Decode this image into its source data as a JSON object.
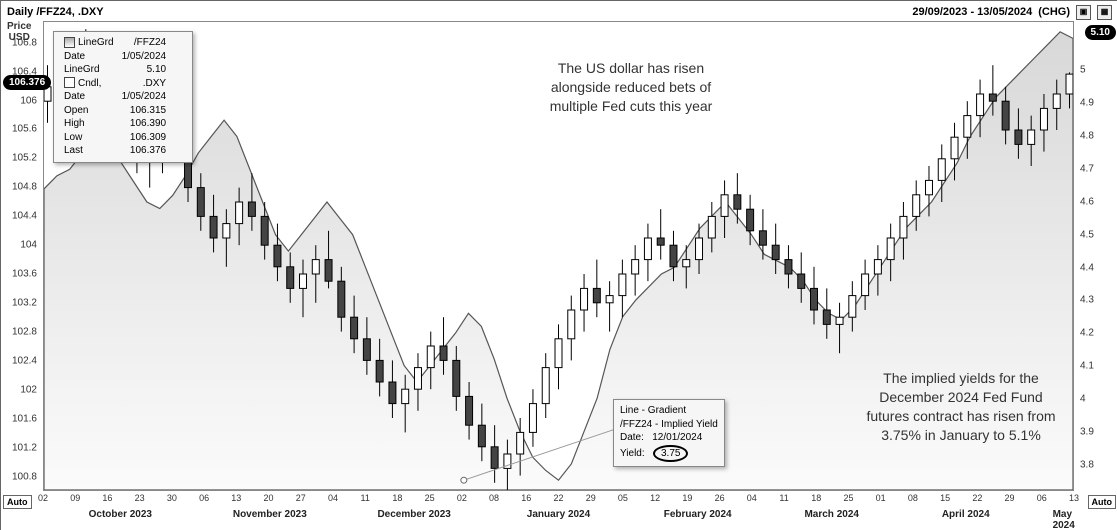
{
  "header": {
    "title_left": "Daily /FFZ24, .DXY",
    "date_range": "29/09/2023 - 13/05/2024",
    "chg_label": "(CHG)"
  },
  "left_axis": {
    "title1": "Price",
    "title2": "USD",
    "ticks": [
      100.8,
      101.2,
      101.6,
      102,
      102.4,
      102.8,
      103.2,
      103.6,
      104,
      104.4,
      104.8,
      105.2,
      105.6,
      106,
      106.4,
      106.8
    ],
    "ymin": 100.6,
    "ymax": 107.1,
    "badge_value": "106.376",
    "auto_label": "Auto"
  },
  "right_axis": {
    "ticks": [
      3.8,
      3.9,
      4,
      4.1,
      4.2,
      4.3,
      4.4,
      4.5,
      4.6,
      4.7,
      4.8,
      4.9,
      5
    ],
    "ymin": 3.72,
    "ymax": 5.15,
    "badge_value": "5.10",
    "auto_label": "Auto"
  },
  "xaxis": {
    "day_ticks": [
      "02",
      "09",
      "16",
      "23",
      "30",
      "06",
      "13",
      "20",
      "27",
      "04",
      "11",
      "18",
      "25",
      "02",
      "08",
      "16",
      "22",
      "29",
      "05",
      "12",
      "19",
      "26",
      "04",
      "11",
      "18",
      "25",
      "01",
      "08",
      "15",
      "22",
      "29",
      "06",
      "13"
    ],
    "months": [
      {
        "label": "October 2023",
        "pos": 0.075
      },
      {
        "label": "November 2023",
        "pos": 0.22
      },
      {
        "label": "December 2023",
        "pos": 0.36
      },
      {
        "label": "January 2024",
        "pos": 0.5
      },
      {
        "label": "February 2024",
        "pos": 0.635
      },
      {
        "label": "March 2024",
        "pos": 0.765
      },
      {
        "label": "April 2024",
        "pos": 0.895
      },
      {
        "label": "May 2024",
        "pos": 0.99
      }
    ]
  },
  "tooltip_tl": {
    "rows": [
      {
        "sym": "line",
        "l": "LineGrd",
        "r": "/FFZ24"
      },
      {
        "l": "Date",
        "r": "1/05/2024"
      },
      {
        "l": "LineGrd",
        "r": "5.10"
      },
      {
        "sym": "candle",
        "l": "Cndl,",
        "r": ".DXY"
      },
      {
        "l": "Date",
        "r": "1/05/2024"
      },
      {
        "l": "Open",
        "r": "106.315"
      },
      {
        "l": "High",
        "r": "106.390"
      },
      {
        "l": "Low",
        "r": "106.309"
      },
      {
        "l": "Last",
        "r": "106.376"
      }
    ]
  },
  "tooltip_mid": {
    "l1": "Line - Gradient",
    "l2": "/FFZ24 - Implied Yield",
    "l3a": "Date:",
    "l3b": "12/01/2024",
    "l4a": "Yield:",
    "l4b": "3.75"
  },
  "annotations": {
    "a1": "The US dollar has risen\nalongside reduced bets of\nmultiple Fed cuts this year",
    "a2": "The implied yields for the\nDecember 2024 Fed Fund\nfutures contract has risen from\n3.75% in January to 5.1%"
  },
  "series": {
    "area_y2": [
      4.64,
      4.68,
      4.7,
      4.75,
      4.8,
      4.78,
      4.72,
      4.66,
      4.6,
      4.58,
      4.62,
      4.68,
      4.75,
      4.8,
      4.85,
      4.8,
      4.7,
      4.6,
      4.5,
      4.45,
      4.5,
      4.55,
      4.6,
      4.55,
      4.5,
      4.4,
      4.3,
      4.2,
      4.1,
      4.05,
      4.1,
      4.15,
      4.2,
      4.26,
      4.22,
      4.12,
      4.0,
      3.9,
      3.82,
      3.78,
      3.75,
      3.8,
      3.9,
      4.0,
      4.15,
      4.25,
      4.3,
      4.34,
      4.38,
      4.4,
      4.46,
      4.52,
      4.56,
      4.6,
      4.55,
      4.5,
      4.44,
      4.42,
      4.4,
      4.36,
      4.3,
      4.26,
      4.24,
      4.28,
      4.34,
      4.4,
      4.46,
      4.52,
      4.56,
      4.6,
      4.66,
      4.72,
      4.8,
      4.86,
      4.92,
      4.96,
      5.0,
      5.04,
      5.08,
      5.12,
      5.1
    ],
    "candles": [
      {
        "o": 106.0,
        "h": 106.5,
        "l": 105.7,
        "c": 106.2
      },
      {
        "o": 106.2,
        "h": 106.6,
        "l": 105.9,
        "c": 106.4
      },
      {
        "o": 106.4,
        "h": 106.9,
        "l": 106.1,
        "c": 106.7
      },
      {
        "o": 106.7,
        "h": 107.0,
        "l": 106.3,
        "c": 106.5
      },
      {
        "o": 106.5,
        "h": 106.8,
        "l": 105.9,
        "c": 106.0
      },
      {
        "o": 106.0,
        "h": 106.3,
        "l": 105.5,
        "c": 105.7
      },
      {
        "o": 105.7,
        "h": 106.1,
        "l": 105.3,
        "c": 105.5
      },
      {
        "o": 105.5,
        "h": 105.8,
        "l": 105.0,
        "c": 105.2
      },
      {
        "o": 105.2,
        "h": 105.6,
        "l": 104.8,
        "c": 105.4
      },
      {
        "o": 105.4,
        "h": 105.9,
        "l": 105.0,
        "c": 105.6
      },
      {
        "o": 105.6,
        "h": 106.0,
        "l": 105.2,
        "c": 105.3
      },
      {
        "o": 105.3,
        "h": 105.5,
        "l": 104.6,
        "c": 104.8
      },
      {
        "o": 104.8,
        "h": 105.0,
        "l": 104.2,
        "c": 104.4
      },
      {
        "o": 104.4,
        "h": 104.7,
        "l": 103.9,
        "c": 104.1
      },
      {
        "o": 104.1,
        "h": 104.5,
        "l": 103.7,
        "c": 104.3
      },
      {
        "o": 104.3,
        "h": 104.8,
        "l": 104.0,
        "c": 104.6
      },
      {
        "o": 104.6,
        "h": 105.0,
        "l": 104.2,
        "c": 104.4
      },
      {
        "o": 104.4,
        "h": 104.6,
        "l": 103.8,
        "c": 104.0
      },
      {
        "o": 104.0,
        "h": 104.3,
        "l": 103.5,
        "c": 103.7
      },
      {
        "o": 103.7,
        "h": 103.9,
        "l": 103.2,
        "c": 103.4
      },
      {
        "o": 103.4,
        "h": 103.8,
        "l": 103.0,
        "c": 103.6
      },
      {
        "o": 103.6,
        "h": 104.0,
        "l": 103.2,
        "c": 103.8
      },
      {
        "o": 103.8,
        "h": 104.2,
        "l": 103.4,
        "c": 103.5
      },
      {
        "o": 103.5,
        "h": 103.7,
        "l": 102.8,
        "c": 103.0
      },
      {
        "o": 103.0,
        "h": 103.3,
        "l": 102.5,
        "c": 102.7
      },
      {
        "o": 102.7,
        "h": 103.0,
        "l": 102.2,
        "c": 102.4
      },
      {
        "o": 102.4,
        "h": 102.7,
        "l": 101.9,
        "c": 102.1
      },
      {
        "o": 102.1,
        "h": 102.4,
        "l": 101.6,
        "c": 101.8
      },
      {
        "o": 101.8,
        "h": 102.2,
        "l": 101.4,
        "c": 102.0
      },
      {
        "o": 102.0,
        "h": 102.5,
        "l": 101.7,
        "c": 102.3
      },
      {
        "o": 102.3,
        "h": 102.8,
        "l": 102.0,
        "c": 102.6
      },
      {
        "o": 102.6,
        "h": 103.0,
        "l": 102.2,
        "c": 102.4
      },
      {
        "o": 102.4,
        "h": 102.6,
        "l": 101.7,
        "c": 101.9
      },
      {
        "o": 101.9,
        "h": 102.1,
        "l": 101.3,
        "c": 101.5
      },
      {
        "o": 101.5,
        "h": 101.8,
        "l": 101.0,
        "c": 101.2
      },
      {
        "o": 101.2,
        "h": 101.5,
        "l": 100.7,
        "c": 100.9
      },
      {
        "o": 100.9,
        "h": 101.3,
        "l": 100.6,
        "c": 101.1
      },
      {
        "o": 101.1,
        "h": 101.6,
        "l": 100.8,
        "c": 101.4
      },
      {
        "o": 101.4,
        "h": 102.0,
        "l": 101.2,
        "c": 101.8
      },
      {
        "o": 101.8,
        "h": 102.5,
        "l": 101.6,
        "c": 102.3
      },
      {
        "o": 102.3,
        "h": 102.9,
        "l": 102.0,
        "c": 102.7
      },
      {
        "o": 102.7,
        "h": 103.3,
        "l": 102.4,
        "c": 103.1
      },
      {
        "o": 103.1,
        "h": 103.6,
        "l": 102.8,
        "c": 103.4
      },
      {
        "o": 103.4,
        "h": 103.8,
        "l": 103.0,
        "c": 103.2
      },
      {
        "o": 103.2,
        "h": 103.5,
        "l": 102.8,
        "c": 103.3
      },
      {
        "o": 103.3,
        "h": 103.8,
        "l": 103.0,
        "c": 103.6
      },
      {
        "o": 103.6,
        "h": 104.0,
        "l": 103.3,
        "c": 103.8
      },
      {
        "o": 103.8,
        "h": 104.3,
        "l": 103.5,
        "c": 104.1
      },
      {
        "o": 104.1,
        "h": 104.5,
        "l": 103.8,
        "c": 104.0
      },
      {
        "o": 104.0,
        "h": 104.2,
        "l": 103.5,
        "c": 103.7
      },
      {
        "o": 103.7,
        "h": 104.0,
        "l": 103.4,
        "c": 103.8
      },
      {
        "o": 103.8,
        "h": 104.3,
        "l": 103.6,
        "c": 104.1
      },
      {
        "o": 104.1,
        "h": 104.6,
        "l": 103.9,
        "c": 104.4
      },
      {
        "o": 104.4,
        "h": 104.9,
        "l": 104.1,
        "c": 104.7
      },
      {
        "o": 104.7,
        "h": 105.0,
        "l": 104.3,
        "c": 104.5
      },
      {
        "o": 104.5,
        "h": 104.7,
        "l": 104.0,
        "c": 104.2
      },
      {
        "o": 104.2,
        "h": 104.5,
        "l": 103.8,
        "c": 104.0
      },
      {
        "o": 104.0,
        "h": 104.3,
        "l": 103.6,
        "c": 103.8
      },
      {
        "o": 103.8,
        "h": 104.0,
        "l": 103.4,
        "c": 103.6
      },
      {
        "o": 103.6,
        "h": 103.9,
        "l": 103.2,
        "c": 103.4
      },
      {
        "o": 103.4,
        "h": 103.7,
        "l": 102.9,
        "c": 103.1
      },
      {
        "o": 103.1,
        "h": 103.4,
        "l": 102.7,
        "c": 102.9
      },
      {
        "o": 102.9,
        "h": 103.2,
        "l": 102.5,
        "c": 103.0
      },
      {
        "o": 103.0,
        "h": 103.5,
        "l": 102.8,
        "c": 103.3
      },
      {
        "o": 103.3,
        "h": 103.8,
        "l": 103.1,
        "c": 103.6
      },
      {
        "o": 103.6,
        "h": 104.0,
        "l": 103.3,
        "c": 103.8
      },
      {
        "o": 103.8,
        "h": 104.3,
        "l": 103.5,
        "c": 104.1
      },
      {
        "o": 104.1,
        "h": 104.6,
        "l": 103.8,
        "c": 104.4
      },
      {
        "o": 104.4,
        "h": 104.9,
        "l": 104.2,
        "c": 104.7
      },
      {
        "o": 104.7,
        "h": 105.1,
        "l": 104.4,
        "c": 104.9
      },
      {
        "o": 104.9,
        "h": 105.4,
        "l": 104.6,
        "c": 105.2
      },
      {
        "o": 105.2,
        "h": 105.7,
        "l": 104.9,
        "c": 105.5
      },
      {
        "o": 105.5,
        "h": 106.0,
        "l": 105.2,
        "c": 105.8
      },
      {
        "o": 105.8,
        "h": 106.3,
        "l": 105.5,
        "c": 106.1
      },
      {
        "o": 106.1,
        "h": 106.5,
        "l": 105.8,
        "c": 106.0
      },
      {
        "o": 106.0,
        "h": 106.2,
        "l": 105.4,
        "c": 105.6
      },
      {
        "o": 105.6,
        "h": 105.9,
        "l": 105.2,
        "c": 105.4
      },
      {
        "o": 105.4,
        "h": 105.8,
        "l": 105.1,
        "c": 105.6
      },
      {
        "o": 105.6,
        "h": 106.1,
        "l": 105.3,
        "c": 105.9
      },
      {
        "o": 105.9,
        "h": 106.3,
        "l": 105.6,
        "c": 106.1
      },
      {
        "o": 106.1,
        "h": 106.4,
        "l": 105.9,
        "c": 106.376
      }
    ]
  },
  "style": {
    "area_fill_top": "#d8d8d8",
    "area_fill_bottom": "#fbfbfb",
    "area_stroke": "#555555",
    "candle_up": "#ffffff",
    "candle_down": "#444444",
    "candle_stroke": "#000000"
  }
}
